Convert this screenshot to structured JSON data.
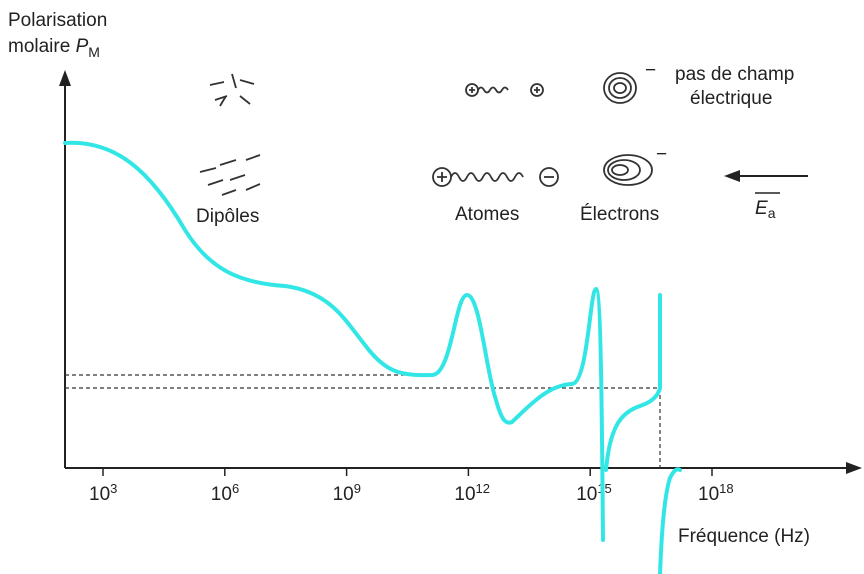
{
  "y_axis_label": {
    "line1": "Polarisation",
    "line2": "molaire",
    "symbol": "P",
    "subscript": "M"
  },
  "x_axis_label": "Fréquence (Hz)",
  "x_ticks": [
    {
      "base": "10",
      "exp": "3"
    },
    {
      "base": "10",
      "exp": "6"
    },
    {
      "base": "10",
      "exp": "9"
    },
    {
      "base": "10",
      "exp": "12"
    },
    {
      "base": "10",
      "exp": "15"
    },
    {
      "base": "10",
      "exp": "18"
    }
  ],
  "labels": {
    "dipoles": "Dipôles",
    "atoms": "Atomes",
    "electrons": "Électrons",
    "charge_top": "−",
    "charge_bottom": "−",
    "no_field_line1": "pas de champ",
    "no_field_line2": "électrique",
    "field_symbol": "E",
    "field_subscript": "a"
  }
}
